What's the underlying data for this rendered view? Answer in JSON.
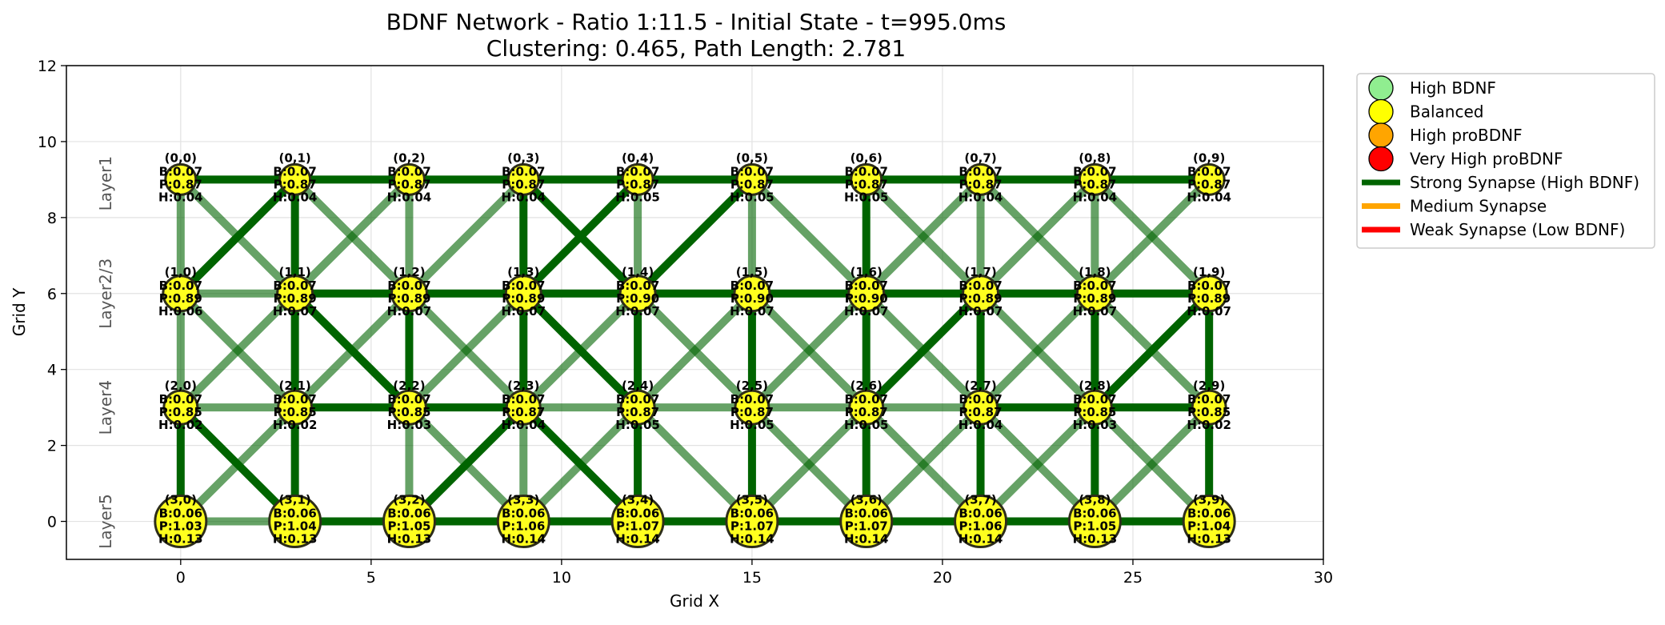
{
  "chart_data": {
    "type": "scatter",
    "title": "BDNF Network - Ratio 1:11.5 - Initial State - t=995.0ms",
    "subtitle": "Clustering: 0.465, Path Length: 2.781",
    "xlabel": "Grid X",
    "ylabel": "Grid Y",
    "xlim": [
      -3,
      30
    ],
    "ylim": [
      -1,
      12
    ],
    "xticks": [
      0,
      5,
      10,
      15,
      20,
      25,
      30
    ],
    "yticks": [
      0,
      2,
      4,
      6,
      8,
      10,
      12
    ],
    "grid": true,
    "legend_placement": "outside-top-right",
    "layers": [
      {
        "label": "Layer1",
        "y": 8.9
      },
      {
        "label": "Layer2/3",
        "y": 6
      },
      {
        "label": "Layer4",
        "y": 3
      },
      {
        "label": "Layer5",
        "y": 0
      }
    ],
    "rows": [
      {
        "y": 9,
        "size": 19,
        "cells": [
          {
            "id": "(0,0)",
            "B": "B:0.07",
            "P": "P:0.87",
            "H": "H:0.04"
          },
          {
            "id": "(0,1)",
            "B": "B:0.07",
            "P": "P:0.87",
            "H": "H:0.04"
          },
          {
            "id": "(0,2)",
            "B": "B:0.07",
            "P": "P:0.87",
            "H": "H:0.04"
          },
          {
            "id": "(0,3)",
            "B": "B:0.07",
            "P": "P:0.87",
            "H": "H:0.04"
          },
          {
            "id": "(0,4)",
            "B": "B:0.07",
            "P": "P:0.87",
            "H": "H:0.05"
          },
          {
            "id": "(0,5)",
            "B": "B:0.07",
            "P": "P:0.87",
            "H": "H:0.05"
          },
          {
            "id": "(0,6)",
            "B": "B:0.07",
            "P": "P:0.87",
            "H": "H:0.05"
          },
          {
            "id": "(0,7)",
            "B": "B:0.07",
            "P": "P:0.87",
            "H": "H:0.04"
          },
          {
            "id": "(0,8)",
            "B": "B:0.07",
            "P": "P:0.87",
            "H": "H:0.04"
          },
          {
            "id": "(0,9)",
            "B": "B:0.07",
            "P": "P:0.87",
            "H": "H:0.04"
          }
        ]
      },
      {
        "y": 6,
        "size": 22,
        "cells": [
          {
            "id": "(1,0)",
            "B": "B:0.07",
            "P": "P:0.89",
            "H": "H:0.06"
          },
          {
            "id": "(1,1)",
            "B": "B:0.07",
            "P": "P:0.89",
            "H": "H:0.07"
          },
          {
            "id": "(1,2)",
            "B": "B:0.07",
            "P": "P:0.89",
            "H": "H:0.07"
          },
          {
            "id": "(1,3)",
            "B": "B:0.07",
            "P": "P:0.89",
            "H": "H:0.07"
          },
          {
            "id": "(1,4)",
            "B": "B:0.07",
            "P": "P:0.90",
            "H": "H:0.07"
          },
          {
            "id": "(1,5)",
            "B": "B:0.07",
            "P": "P:0.90",
            "H": "H:0.07"
          },
          {
            "id": "(1,6)",
            "B": "B:0.07",
            "P": "P:0.90",
            "H": "H:0.07"
          },
          {
            "id": "(1,7)",
            "B": "B:0.07",
            "P": "P:0.89",
            "H": "H:0.07"
          },
          {
            "id": "(1,8)",
            "B": "B:0.07",
            "P": "P:0.89",
            "H": "H:0.07"
          },
          {
            "id": "(1,9)",
            "B": "B:0.07",
            "P": "P:0.89",
            "H": "H:0.07"
          }
        ]
      },
      {
        "y": 3,
        "size": 21,
        "cells": [
          {
            "id": "(2,0)",
            "B": "B:0.07",
            "P": "P:0.85",
            "H": "H:0.02"
          },
          {
            "id": "(2,1)",
            "B": "B:0.07",
            "P": "P:0.85",
            "H": "H:0.02"
          },
          {
            "id": "(2,2)",
            "B": "B:0.07",
            "P": "P:0.85",
            "H": "H:0.03"
          },
          {
            "id": "(2,3)",
            "B": "B:0.07",
            "P": "P:0.87",
            "H": "H:0.04"
          },
          {
            "id": "(2,4)",
            "B": "B:0.07",
            "P": "P:0.87",
            "H": "H:0.05"
          },
          {
            "id": "(2,5)",
            "B": "B:0.07",
            "P": "P:0.87",
            "H": "H:0.05"
          },
          {
            "id": "(2,6)",
            "B": "B:0.07",
            "P": "P:0.87",
            "H": "H:0.05"
          },
          {
            "id": "(2,7)",
            "B": "B:0.07",
            "P": "P:0.87",
            "H": "H:0.04"
          },
          {
            "id": "(2,8)",
            "B": "B:0.07",
            "P": "P:0.85",
            "H": "H:0.03"
          },
          {
            "id": "(2,9)",
            "B": "B:0.07",
            "P": "P:0.85",
            "H": "H:0.02"
          }
        ]
      },
      {
        "y": 0,
        "size": 32,
        "cells": [
          {
            "id": "(3,0)",
            "B": "B:0.06",
            "P": "P:1.03",
            "H": "H:0.13"
          },
          {
            "id": "(3,1)",
            "B": "B:0.06",
            "P": "P:1.04",
            "H": "H:0.13"
          },
          {
            "id": "(3,2)",
            "B": "B:0.06",
            "P": "P:1.05",
            "H": "H:0.13"
          },
          {
            "id": "(3,3)",
            "B": "B:0.06",
            "P": "P:1.06",
            "H": "H:0.14"
          },
          {
            "id": "(3,4)",
            "B": "B:0.06",
            "P": "P:1.07",
            "H": "H:0.14"
          },
          {
            "id": "(3,5)",
            "B": "B:0.06",
            "P": "P:1.07",
            "H": "H:0.14"
          },
          {
            "id": "(3,6)",
            "B": "B:0.06",
            "P": "P:1.07",
            "H": "H:0.14"
          },
          {
            "id": "(3,7)",
            "B": "B:0.06",
            "P": "P:1.06",
            "H": "H:0.14"
          },
          {
            "id": "(3,8)",
            "B": "B:0.06",
            "P": "P:1.05",
            "H": "H:0.13"
          },
          {
            "id": "(3,9)",
            "B": "B:0.06",
            "P": "P:1.04",
            "H": "H:0.13"
          }
        ]
      }
    ],
    "node_x": [
      0,
      3,
      6,
      9,
      12,
      15,
      18,
      21,
      24,
      27
    ],
    "edges": [
      {
        "from": "(0,0)",
        "to": "(0,9)",
        "kind": "strong"
      },
      {
        "from": "(0,0)",
        "to": "(1,0)",
        "kind": "medium"
      },
      {
        "from": "(0,0)",
        "to": "(1,1)",
        "kind": "medium"
      },
      {
        "from": "(0,1)",
        "to": "(1,0)",
        "kind": "strong"
      },
      {
        "from": "(0,1)",
        "to": "(1,1)",
        "kind": "strong"
      },
      {
        "from": "(0,1)",
        "to": "(1,2)",
        "kind": "medium"
      },
      {
        "from": "(0,2)",
        "to": "(1,1)",
        "kind": "medium"
      },
      {
        "from": "(0,2)",
        "to": "(1,2)",
        "kind": "medium"
      },
      {
        "from": "(0,3)",
        "to": "(1,2)",
        "kind": "medium"
      },
      {
        "from": "(0,3)",
        "to": "(1,3)",
        "kind": "strong"
      },
      {
        "from": "(0,3)",
        "to": "(1,4)",
        "kind": "strong"
      },
      {
        "from": "(0,4)",
        "to": "(1,3)",
        "kind": "strong"
      },
      {
        "from": "(0,4)",
        "to": "(1,4)",
        "kind": "medium"
      },
      {
        "from": "(0,5)",
        "to": "(1,4)",
        "kind": "strong"
      },
      {
        "from": "(0,5)",
        "to": "(1,5)",
        "kind": "medium"
      },
      {
        "from": "(0,5)",
        "to": "(1,6)",
        "kind": "medium"
      },
      {
        "from": "(0,6)",
        "to": "(1,6)",
        "kind": "strong"
      },
      {
        "from": "(0,6)",
        "to": "(1,7)",
        "kind": "medium"
      },
      {
        "from": "(0,7)",
        "to": "(1,6)",
        "kind": "medium"
      },
      {
        "from": "(0,7)",
        "to": "(1,7)",
        "kind": "medium"
      },
      {
        "from": "(0,7)",
        "to": "(1,8)",
        "kind": "medium"
      },
      {
        "from": "(0,8)",
        "to": "(1,7)",
        "kind": "medium"
      },
      {
        "from": "(0,8)",
        "to": "(1,8)",
        "kind": "medium"
      },
      {
        "from": "(0,8)",
        "to": "(1,9)",
        "kind": "medium"
      },
      {
        "from": "(0,9)",
        "to": "(1,8)",
        "kind": "medium"
      },
      {
        "from": "(1,0)",
        "to": "(1,1)",
        "kind": "medium"
      },
      {
        "from": "(1,1)",
        "to": "(1,9)",
        "kind": "strong"
      },
      {
        "from": "(1,0)",
        "to": "(2,0)",
        "kind": "medium"
      },
      {
        "from": "(1,0)",
        "to": "(2,1)",
        "kind": "medium"
      },
      {
        "from": "(1,1)",
        "to": "(2,0)",
        "kind": "medium"
      },
      {
        "from": "(1,1)",
        "to": "(2,1)",
        "kind": "strong"
      },
      {
        "from": "(1,1)",
        "to": "(2,2)",
        "kind": "strong"
      },
      {
        "from": "(1,2)",
        "to": "(2,1)",
        "kind": "medium"
      },
      {
        "from": "(1,2)",
        "to": "(2,2)",
        "kind": "strong"
      },
      {
        "from": "(1,2)",
        "to": "(2,3)",
        "kind": "medium"
      },
      {
        "from": "(1,3)",
        "to": "(2,2)",
        "kind": "medium"
      },
      {
        "from": "(1,3)",
        "to": "(2,3)",
        "kind": "strong"
      },
      {
        "from": "(1,3)",
        "to": "(2,4)",
        "kind": "strong"
      },
      {
        "from": "(1,4)",
        "to": "(2,3)",
        "kind": "medium"
      },
      {
        "from": "(1,4)",
        "to": "(2,4)",
        "kind": "strong"
      },
      {
        "from": "(1,4)",
        "to": "(2,5)",
        "kind": "medium"
      },
      {
        "from": "(1,5)",
        "to": "(2,4)",
        "kind": "medium"
      },
      {
        "from": "(1,5)",
        "to": "(2,5)",
        "kind": "strong"
      },
      {
        "from": "(1,5)",
        "to": "(2,6)",
        "kind": "medium"
      },
      {
        "from": "(1,6)",
        "to": "(2,5)",
        "kind": "medium"
      },
      {
        "from": "(1,6)",
        "to": "(2,6)",
        "kind": "strong"
      },
      {
        "from": "(1,6)",
        "to": "(2,7)",
        "kind": "medium"
      },
      {
        "from": "(1,7)",
        "to": "(2,6)",
        "kind": "strong"
      },
      {
        "from": "(1,7)",
        "to": "(2,7)",
        "kind": "strong"
      },
      {
        "from": "(1,7)",
        "to": "(2,8)",
        "kind": "medium"
      },
      {
        "from": "(1,8)",
        "to": "(2,7)",
        "kind": "medium"
      },
      {
        "from": "(1,8)",
        "to": "(2,8)",
        "kind": "strong"
      },
      {
        "from": "(1,8)",
        "to": "(2,9)",
        "kind": "medium"
      },
      {
        "from": "(1,9)",
        "to": "(2,8)",
        "kind": "strong"
      },
      {
        "from": "(1,9)",
        "to": "(2,9)",
        "kind": "strong"
      },
      {
        "from": "(2,0)",
        "to": "(2,1)",
        "kind": "medium"
      },
      {
        "from": "(2,1)",
        "to": "(2,3)",
        "kind": "strong"
      },
      {
        "from": "(2,3)",
        "to": "(2,7)",
        "kind": "medium"
      },
      {
        "from": "(2,7)",
        "to": "(2,9)",
        "kind": "strong"
      },
      {
        "from": "(2,0)",
        "to": "(3,0)",
        "kind": "strong"
      },
      {
        "from": "(2,0)",
        "to": "(3,1)",
        "kind": "strong"
      },
      {
        "from": "(2,1)",
        "to": "(3,0)",
        "kind": "medium"
      },
      {
        "from": "(2,1)",
        "to": "(3,1)",
        "kind": "strong"
      },
      {
        "from": "(2,2)",
        "to": "(3,2)",
        "kind": "medium"
      },
      {
        "from": "(2,2)",
        "to": "(3,3)",
        "kind": "medium"
      },
      {
        "from": "(2,3)",
        "to": "(3,2)",
        "kind": "strong"
      },
      {
        "from": "(2,3)",
        "to": "(3,3)",
        "kind": "medium"
      },
      {
        "from": "(2,3)",
        "to": "(3,4)",
        "kind": "strong"
      },
      {
        "from": "(2,4)",
        "to": "(3,3)",
        "kind": "medium"
      },
      {
        "from": "(2,4)",
        "to": "(3,4)",
        "kind": "strong"
      },
      {
        "from": "(2,4)",
        "to": "(3,5)",
        "kind": "medium"
      },
      {
        "from": "(2,5)",
        "to": "(3,5)",
        "kind": "strong"
      },
      {
        "from": "(2,5)",
        "to": "(3,6)",
        "kind": "medium"
      },
      {
        "from": "(2,6)",
        "to": "(3,5)",
        "kind": "medium"
      },
      {
        "from": "(2,6)",
        "to": "(3,6)",
        "kind": "strong"
      },
      {
        "from": "(2,6)",
        "to": "(3,7)",
        "kind": "medium"
      },
      {
        "from": "(2,7)",
        "to": "(3,6)",
        "kind": "medium"
      },
      {
        "from": "(2,7)",
        "to": "(3,7)",
        "kind": "strong"
      },
      {
        "from": "(2,7)",
        "to": "(3,8)",
        "kind": "medium"
      },
      {
        "from": "(2,8)",
        "to": "(3,7)",
        "kind": "medium"
      },
      {
        "from": "(2,8)",
        "to": "(3,8)",
        "kind": "strong"
      },
      {
        "from": "(2,8)",
        "to": "(3,9)",
        "kind": "medium"
      },
      {
        "from": "(2,9)",
        "to": "(3,8)",
        "kind": "medium"
      },
      {
        "from": "(2,9)",
        "to": "(3,9)",
        "kind": "strong"
      },
      {
        "from": "(3,0)",
        "to": "(3,1)",
        "kind": "medium"
      },
      {
        "from": "(3,1)",
        "to": "(3,9)",
        "kind": "strong"
      }
    ],
    "edge_styles": {
      "strong": {
        "color": "#006400",
        "opacity": 1.0
      },
      "medium": {
        "color": "#006400",
        "opacity": 0.6
      }
    },
    "node_color": "#ffff1e",
    "legend": [
      {
        "label": "High BDNF",
        "kind": "marker",
        "color": "#90ee90"
      },
      {
        "label": "Balanced",
        "kind": "marker",
        "color": "#ffff00"
      },
      {
        "label": "High proBDNF",
        "kind": "marker",
        "color": "#ffa500"
      },
      {
        "label": "Very High proBDNF",
        "kind": "marker",
        "color": "#ff0000"
      },
      {
        "label": "Strong Synapse (High BDNF)",
        "kind": "line",
        "color": "#006400"
      },
      {
        "label": "Medium Synapse",
        "kind": "line",
        "color": "#ffa500"
      },
      {
        "label": "Weak Synapse (Low BDNF)",
        "kind": "line",
        "color": "#ff0000"
      }
    ]
  }
}
